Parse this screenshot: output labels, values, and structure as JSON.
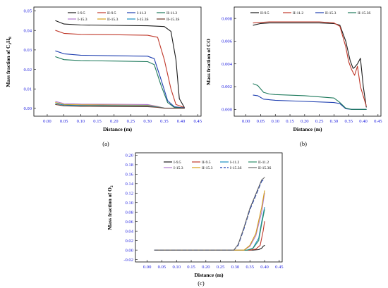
{
  "figure": {
    "captions": [
      "(a)",
      "(b)",
      "(c)"
    ]
  },
  "chart_data": [
    {
      "id": "a",
      "type": "line",
      "caption": "(a)",
      "xlabel": "Distance (m)",
      "ylabel_main": "Mass fraction of C",
      "ylabel_sub1": "3",
      "ylabel_mid": "H",
      "ylabel_sub2": "8",
      "xlim": [
        -0.04,
        0.46
      ],
      "ylim": [
        -0.004,
        0.052
      ],
      "xticks": [
        0.0,
        0.05,
        0.1,
        0.15,
        0.2,
        0.25,
        0.3,
        0.35,
        0.4,
        0.45
      ],
      "xtick_labels": [
        "0.00",
        "0.05",
        "0.10",
        "0.15",
        "0.20",
        "0.25",
        "0.30",
        "0.35",
        "0.40",
        "0.45"
      ],
      "yticks": [
        0.0,
        0.01,
        0.02,
        0.03,
        0.04,
        0.05
      ],
      "ytick_labels": [
        "0.00",
        "0.01",
        "0.02",
        "0.03",
        "0.04",
        "0.05"
      ],
      "legend_position": "top-right",
      "legend_cols": 4,
      "series": [
        {
          "name": "I-9.5",
          "color": "#1a1a1a",
          "dash": "",
          "x": [
            0.025,
            0.05,
            0.1,
            0.2,
            0.3,
            0.35,
            0.37,
            0.385,
            0.395,
            0.41
          ],
          "y": [
            0.045,
            0.0433,
            0.0428,
            0.0426,
            0.0424,
            0.042,
            0.0395,
            0.025,
            0.005,
            0.0005
          ]
        },
        {
          "name": "II-9.5",
          "color": "#c0392b",
          "dash": "",
          "x": [
            0.025,
            0.05,
            0.1,
            0.2,
            0.3,
            0.33,
            0.35,
            0.37,
            0.385,
            0.41
          ],
          "y": [
            0.04,
            0.0385,
            0.038,
            0.0378,
            0.0375,
            0.0365,
            0.025,
            0.01,
            0.002,
            0.0004
          ]
        },
        {
          "name": "I-11.2",
          "color": "#1f3fb0",
          "dash": "",
          "x": [
            0.025,
            0.05,
            0.1,
            0.2,
            0.3,
            0.32,
            0.34,
            0.36,
            0.38,
            0.41
          ],
          "y": [
            0.0295,
            0.028,
            0.0273,
            0.027,
            0.0268,
            0.0255,
            0.015,
            0.004,
            0.0008,
            0.0003
          ]
        },
        {
          "name": "II-11.2",
          "color": "#1e7a5c",
          "dash": "",
          "x": [
            0.025,
            0.05,
            0.1,
            0.2,
            0.3,
            0.32,
            0.34,
            0.36,
            0.38,
            0.41
          ],
          "y": [
            0.0265,
            0.025,
            0.0245,
            0.0243,
            0.024,
            0.0225,
            0.012,
            0.003,
            0.0005,
            0.0002
          ]
        },
        {
          "name": "I-15.3",
          "color": "#b07ad0",
          "dash": "",
          "x": [
            0.025,
            0.05,
            0.1,
            0.2,
            0.3,
            0.33,
            0.35,
            0.41
          ],
          "y": [
            0.0035,
            0.0025,
            0.0022,
            0.0021,
            0.002,
            0.001,
            0.0002,
            0.0001
          ]
        },
        {
          "name": "II-15.3",
          "color": "#d4a017",
          "dash": "",
          "x": [
            0.025,
            0.05,
            0.1,
            0.2,
            0.3,
            0.33,
            0.35,
            0.41
          ],
          "y": [
            0.003,
            0.002,
            0.0018,
            0.0017,
            0.0016,
            0.0008,
            0.0002,
            0.0001
          ]
        },
        {
          "name": "I-15.3S",
          "color": "#1b8fc0",
          "dash": "",
          "x": [
            0.025,
            0.05,
            0.1,
            0.2,
            0.3,
            0.33,
            0.35,
            0.41
          ],
          "y": [
            0.0025,
            0.0017,
            0.0015,
            0.0014,
            0.0013,
            0.0007,
            0.0002,
            0.0001
          ]
        },
        {
          "name": "II-15.3S",
          "color": "#6b3a2a",
          "dash": "",
          "x": [
            0.025,
            0.05,
            0.1,
            0.2,
            0.3,
            0.33,
            0.35,
            0.41
          ],
          "y": [
            0.002,
            0.0013,
            0.0011,
            0.001,
            0.0009,
            0.0005,
            0.0001,
            0.0001
          ]
        }
      ]
    },
    {
      "id": "b",
      "type": "line",
      "caption": "(b)",
      "xlabel": "Distance (m)",
      "ylabel_main": "Mass fraction of CO",
      "xlim": [
        -0.04,
        0.46
      ],
      "ylim": [
        -0.0006,
        0.009
      ],
      "xticks": [
        0.0,
        0.05,
        0.1,
        0.15,
        0.2,
        0.25,
        0.3,
        0.35,
        0.4,
        0.45
      ],
      "xtick_labels": [
        "0.00",
        "0.05",
        "0.10",
        "0.15",
        "0.20",
        "0.25",
        "0.30",
        "0.35",
        "0.40",
        "0.45"
      ],
      "yticks": [
        0.0,
        0.002,
        0.004,
        0.006,
        0.008
      ],
      "ytick_labels": [
        "0.000",
        "0.002",
        "0.004",
        "0.006",
        "0.008"
      ],
      "legend_position": "top-right",
      "legend_cols": 4,
      "series": [
        {
          "name": "II-9.5",
          "color": "#1a1a1a",
          "dash": "",
          "x": [
            0.025,
            0.05,
            0.08,
            0.15,
            0.25,
            0.3,
            0.32,
            0.34,
            0.355,
            0.365,
            0.37,
            0.38,
            0.39,
            0.4,
            0.41
          ],
          "y": [
            0.0074,
            0.00755,
            0.0076,
            0.0076,
            0.0076,
            0.00755,
            0.0074,
            0.006,
            0.0043,
            0.0036,
            0.0037,
            0.004,
            0.0045,
            0.002,
            0.0002
          ]
        },
        {
          "name": "II-11.2",
          "color": "#c0392b",
          "dash": "",
          "x": [
            0.025,
            0.05,
            0.08,
            0.15,
            0.25,
            0.3,
            0.32,
            0.34,
            0.35,
            0.36,
            0.37,
            0.38,
            0.39,
            0.41
          ],
          "y": [
            0.0076,
            0.00765,
            0.0077,
            0.0077,
            0.0077,
            0.0076,
            0.0073,
            0.0055,
            0.0042,
            0.0035,
            0.003,
            0.0038,
            0.002,
            0.0003
          ]
        },
        {
          "name": "II-15.3",
          "color": "#1f3fb0",
          "dash": "",
          "x": [
            0.025,
            0.04,
            0.06,
            0.1,
            0.2,
            0.3,
            0.32,
            0.34,
            0.36,
            0.41
          ],
          "y": [
            0.00125,
            0.0012,
            0.0009,
            0.0008,
            0.0007,
            0.0006,
            0.0005,
            5e-05,
            0.0,
            0.0
          ]
        },
        {
          "name": "II-15.3S",
          "color": "#1e7a5c",
          "dash": "",
          "x": [
            0.025,
            0.04,
            0.06,
            0.08,
            0.1,
            0.2,
            0.3,
            0.32,
            0.34,
            0.36,
            0.41
          ],
          "y": [
            0.00225,
            0.0021,
            0.0015,
            0.00135,
            0.0013,
            0.0012,
            0.001,
            0.0006,
            0.0001,
            0.0,
            0.0
          ]
        }
      ]
    },
    {
      "id": "c",
      "type": "line",
      "caption": "(c)",
      "xlabel": "Distance (m)",
      "ylabel_main": "Mass fraction of O",
      "ylabel_sub1": "2",
      "xlim": [
        -0.04,
        0.46
      ],
      "ylim": [
        -0.025,
        0.205
      ],
      "xticks": [
        0.0,
        0.05,
        0.1,
        0.15,
        0.2,
        0.25,
        0.3,
        0.35,
        0.4,
        0.45
      ],
      "xtick_labels": [
        "0.00",
        "0.05",
        "0.10",
        "0.15",
        "0.20",
        "0.25",
        "0.30",
        "0.35",
        "0.40",
        "0.45"
      ],
      "yticks": [
        -0.02,
        0.0,
        0.02,
        0.04,
        0.06,
        0.08,
        0.1,
        0.12,
        0.14,
        0.16,
        0.18,
        0.2
      ],
      "ytick_labels": [
        "-0.02",
        "0.00",
        "0.02",
        "0.04",
        "0.06",
        "0.08",
        "0.10",
        "0.12",
        "0.14",
        "0.16",
        "0.18",
        "0.20"
      ],
      "legend_position": "top-right",
      "legend_cols": 4,
      "series": [
        {
          "name": "I-9.5",
          "color": "#1a1a1a",
          "dash": "",
          "x": [
            0.025,
            0.36,
            0.38,
            0.39,
            0.395,
            0.4
          ],
          "y": [
            0.0,
            0.0,
            0.001,
            0.004,
            0.008,
            0.01
          ]
        },
        {
          "name": "II-9.5",
          "color": "#c0392b",
          "dash": "",
          "x": [
            0.025,
            0.35,
            0.37,
            0.385,
            0.395,
            0.4
          ],
          "y": [
            0.0,
            0.0,
            0.002,
            0.01,
            0.04,
            0.06
          ]
        },
        {
          "name": "I-11.2",
          "color": "#1b8fc0",
          "dash": "",
          "x": [
            0.025,
            0.34,
            0.36,
            0.38,
            0.39,
            0.4
          ],
          "y": [
            0.0,
            0.0,
            0.004,
            0.025,
            0.06,
            0.09
          ]
        },
        {
          "name": "II-11.2",
          "color": "#2f8f6a",
          "dash": "",
          "x": [
            0.025,
            0.34,
            0.36,
            0.38,
            0.39,
            0.4
          ],
          "y": [
            0.0,
            0.0,
            0.003,
            0.02,
            0.055,
            0.085
          ]
        },
        {
          "name": "I-15.3",
          "color": "#b07ad0",
          "dash": "",
          "x": [
            0.025,
            0.33,
            0.35,
            0.37,
            0.39,
            0.4
          ],
          "y": [
            0.0,
            0.0,
            0.008,
            0.03,
            0.08,
            0.12
          ]
        },
        {
          "name": "II-15.3",
          "color": "#d4a017",
          "dash": "",
          "x": [
            0.025,
            0.33,
            0.35,
            0.37,
            0.39,
            0.4
          ],
          "y": [
            0.0,
            0.0,
            0.01,
            0.035,
            0.09,
            0.125
          ]
        },
        {
          "name": "I-15.3S",
          "color": "#1f3fb0",
          "dash": "5,3",
          "x": [
            0.025,
            0.295,
            0.31,
            0.33,
            0.35,
            0.37,
            0.39,
            0.4
          ],
          "y": [
            0.0,
            0.0,
            0.01,
            0.045,
            0.085,
            0.115,
            0.145,
            0.15
          ]
        },
        {
          "name": "II-15.3S",
          "color": "#6b6b6b",
          "dash": "",
          "x": [
            0.025,
            0.295,
            0.31,
            0.33,
            0.35,
            0.37,
            0.39,
            0.4
          ],
          "y": [
            0.0,
            0.0,
            0.012,
            0.048,
            0.088,
            0.118,
            0.148,
            0.153
          ]
        }
      ]
    }
  ]
}
